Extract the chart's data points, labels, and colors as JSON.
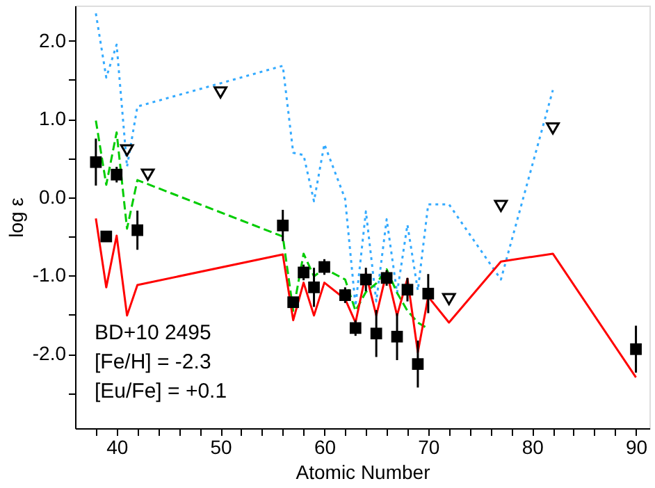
{
  "chart_data": {
    "type": "scatter",
    "xlabel": "Atomic Number",
    "ylabel": "log ε",
    "xlim": [
      36,
      91.3
    ],
    "ylim": [
      -2.95,
      2.45
    ],
    "xticks": [
      {
        "value": 38,
        "label": null
      },
      40,
      {
        "value": 42,
        "label": null
      },
      {
        "value": 44,
        "label": null
      },
      {
        "value": 46,
        "label": null
      },
      {
        "value": 48,
        "label": null
      },
      50,
      {
        "value": 52,
        "label": null
      },
      {
        "value": 54,
        "label": null
      },
      {
        "value": 56,
        "label": null
      },
      {
        "value": 58,
        "label": null
      },
      60,
      {
        "value": 62,
        "label": null
      },
      {
        "value": 64,
        "label": null
      },
      {
        "value": 66,
        "label": null
      },
      {
        "value": 68,
        "label": null
      },
      70,
      {
        "value": 72,
        "label": null
      },
      {
        "value": 74,
        "label": null
      },
      {
        "value": 76,
        "label": null
      },
      {
        "value": 78,
        "label": null
      },
      80,
      {
        "value": 82,
        "label": null
      },
      {
        "value": 84,
        "label": null
      },
      {
        "value": 86,
        "label": null
      },
      {
        "value": 88,
        "label": null
      },
      90
    ],
    "yticks": [
      {
        "value": -2.5,
        "label": null
      },
      {
        "value": -2,
        "label": "-2.0"
      },
      {
        "value": -1.5,
        "label": null
      },
      {
        "value": -1,
        "label": "-1.0"
      },
      {
        "value": -0.5,
        "label": null
      },
      {
        "value": 0,
        "label": "0.0"
      },
      {
        "value": 0.5,
        "label": null
      },
      {
        "value": 1,
        "label": "1.0"
      },
      {
        "value": 1.5,
        "label": null
      },
      {
        "value": 2,
        "label": "2.0"
      }
    ],
    "grid": false,
    "annotations": [
      "BD+10 2495",
      "[Fe/H] = -2.3",
      "[Eu/Fe] = +0.1"
    ],
    "series": [
      {
        "type": "line",
        "line_style": "dotted",
        "color": "#33aaff",
        "x": [
          38,
          39,
          40,
          41,
          42,
          56,
          57,
          58,
          59,
          60,
          62,
          63,
          64,
          65,
          66,
          67,
          68,
          69,
          70,
          72,
          77,
          82
        ],
        "values": [
          2.35,
          1.53,
          1.95,
          0.39,
          1.16,
          1.68,
          0.57,
          0.54,
          -0.05,
          0.68,
          -0.02,
          -1.39,
          -0.18,
          -1.33,
          -0.28,
          -1.22,
          -0.35,
          -1.19,
          -0.09,
          -0.09,
          -1.05,
          1.37
        ]
      },
      {
        "type": "line",
        "line_style": "dashed",
        "color": "#00cc00",
        "x": [
          38,
          39,
          40,
          41,
          42,
          56,
          57,
          58,
          59,
          60,
          62,
          63,
          64,
          65,
          66,
          67,
          68,
          69,
          70
        ],
        "values": [
          0.98,
          0.16,
          0.83,
          -0.4,
          0.22,
          -0.5,
          -1.45,
          -0.72,
          -1.01,
          -0.91,
          -1.05,
          -1.45,
          -1.21,
          -1.1,
          -0.92,
          -1.22,
          -1.45,
          -1.6,
          -1.68
        ]
      },
      {
        "type": "line",
        "line_style": "solid",
        "color": "#ff0000",
        "x": [
          38,
          39,
          40,
          41,
          42,
          56,
          57,
          58,
          59,
          60,
          62,
          63,
          64,
          65,
          66,
          67,
          68,
          69,
          70,
          72,
          77,
          82,
          90
        ],
        "values": [
          -0.27,
          -1.15,
          -0.49,
          -1.51,
          -1.12,
          -0.73,
          -1.57,
          -1.09,
          -1.51,
          -1.09,
          -1.3,
          -1.6,
          -0.97,
          -1.51,
          -0.95,
          -1.51,
          -1.04,
          -1.98,
          -1.27,
          -1.6,
          -0.82,
          -0.72,
          -2.3
        ]
      },
      {
        "type": "scatter",
        "marker": "triangle",
        "color": "#000000",
        "x": [
          41,
          43,
          50,
          72,
          77,
          82
        ],
        "values": [
          0.6,
          0.29,
          1.34,
          -1.3,
          -0.11,
          0.88
        ]
      },
      {
        "type": "scatter",
        "marker": "square",
        "color": "#000000",
        "x": [
          38,
          39,
          40,
          42,
          56,
          57,
          58,
          59,
          60,
          62,
          63,
          64,
          65,
          66,
          67,
          68,
          69,
          70,
          90
        ],
        "values": [
          0.45,
          -0.5,
          0.29,
          -0.42,
          -0.36,
          -1.34,
          -0.96,
          -1.15,
          -0.89,
          -1.25,
          -1.67,
          -1.05,
          -1.74,
          -1.03,
          -1.78,
          -1.18,
          -2.13,
          -1.23,
          -1.94
        ],
        "errors": [
          0.3,
          0.07,
          0.1,
          0.25,
          0.2,
          0.05,
          0.1,
          0.25,
          0.1,
          0.1,
          0.1,
          0.15,
          0.3,
          0.1,
          0.3,
          0.15,
          0.3,
          0.25,
          0.3
        ]
      }
    ]
  }
}
